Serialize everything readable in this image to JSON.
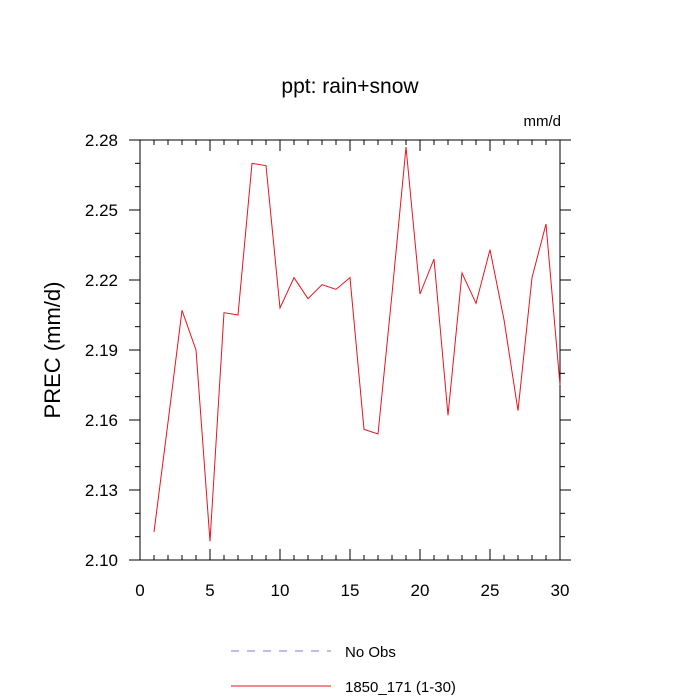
{
  "chart_data": {
    "type": "line",
    "title": "ppt: rain+snow",
    "units": "mm/d",
    "ylabel": "PREC  (mm/d)",
    "xlabel": "",
    "xlim": [
      0,
      30
    ],
    "ylim": [
      2.1,
      2.28
    ],
    "xticks": [
      0,
      5,
      10,
      15,
      20,
      25,
      30
    ],
    "yticks": [
      2.1,
      2.13,
      2.16,
      2.19,
      2.22,
      2.25,
      2.28
    ],
    "ytick_labels": [
      "2.10",
      "2.13",
      "2.16",
      "2.19",
      "2.22",
      "2.25",
      "2.28"
    ],
    "grid": false,
    "legend_position": "bottom",
    "series": [
      {
        "name": "No Obs",
        "color": "#7b7bea",
        "style": "dashed",
        "x": [],
        "values": []
      },
      {
        "name": "1850_171 (1-30)",
        "color": "#e8141e",
        "style": "solid",
        "x": [
          1,
          2,
          3,
          4,
          5,
          6,
          7,
          8,
          9,
          10,
          11,
          12,
          13,
          14,
          15,
          16,
          17,
          18,
          19,
          20,
          21,
          22,
          23,
          24,
          25,
          26,
          27,
          28,
          29,
          30
        ],
        "values": [
          2.112,
          2.159,
          2.207,
          2.19,
          2.108,
          2.206,
          2.205,
          2.27,
          2.269,
          2.208,
          2.221,
          2.212,
          2.218,
          2.216,
          2.221,
          2.156,
          2.154,
          2.214,
          2.277,
          2.214,
          2.229,
          2.162,
          2.223,
          2.21,
          2.233,
          2.203,
          2.164,
          2.221,
          2.244,
          2.175
        ]
      }
    ]
  }
}
